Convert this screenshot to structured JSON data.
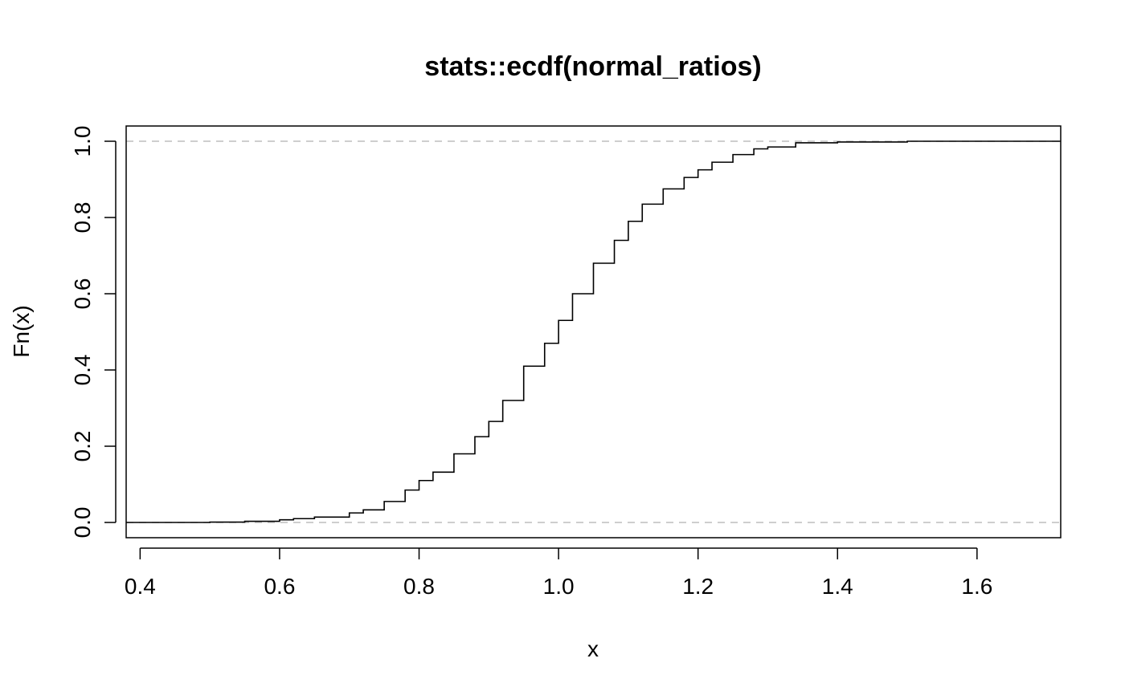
{
  "chart_data": {
    "type": "line",
    "step": true,
    "title": "stats::ecdf(normal_ratios)",
    "xlabel": "x",
    "ylabel": "Fn(x)",
    "xlim": [
      0.38,
      1.72
    ],
    "ylim": [
      -0.04,
      1.04
    ],
    "x_ticks": [
      0.4,
      0.6,
      0.8,
      1.0,
      1.2,
      1.4,
      1.6
    ],
    "x_tick_labels": [
      "0.4",
      "0.6",
      "0.8",
      "1.0",
      "1.2",
      "1.4",
      "1.6"
    ],
    "y_ticks": [
      0.0,
      0.2,
      0.4,
      0.6,
      0.8,
      1.0
    ],
    "y_tick_labels": [
      "0.0",
      "0.2",
      "0.4",
      "0.6",
      "0.8",
      "1.0"
    ],
    "reference_lines": [
      {
        "y": 0.0,
        "style": "dashed",
        "color": "#bebebe"
      },
      {
        "y": 1.0,
        "style": "dashed",
        "color": "#bebebe"
      }
    ],
    "grid": false,
    "legend": false,
    "series": [
      {
        "color": "#000000",
        "x": [
          0.38,
          0.45,
          0.5,
          0.55,
          0.6,
          0.62,
          0.65,
          0.7,
          0.72,
          0.75,
          0.78,
          0.8,
          0.82,
          0.85,
          0.88,
          0.9,
          0.92,
          0.95,
          0.98,
          1.0,
          1.02,
          1.05,
          1.08,
          1.1,
          1.12,
          1.15,
          1.18,
          1.2,
          1.22,
          1.25,
          1.28,
          1.3,
          1.34,
          1.4,
          1.5,
          1.72
        ],
        "y": [
          0.0,
          0.0,
          0.001,
          0.003,
          0.007,
          0.01,
          0.014,
          0.025,
          0.033,
          0.055,
          0.085,
          0.11,
          0.132,
          0.18,
          0.225,
          0.265,
          0.32,
          0.41,
          0.47,
          0.53,
          0.6,
          0.68,
          0.74,
          0.79,
          0.835,
          0.875,
          0.905,
          0.925,
          0.945,
          0.965,
          0.98,
          0.985,
          0.996,
          0.998,
          1.0,
          1.0
        ]
      }
    ]
  }
}
